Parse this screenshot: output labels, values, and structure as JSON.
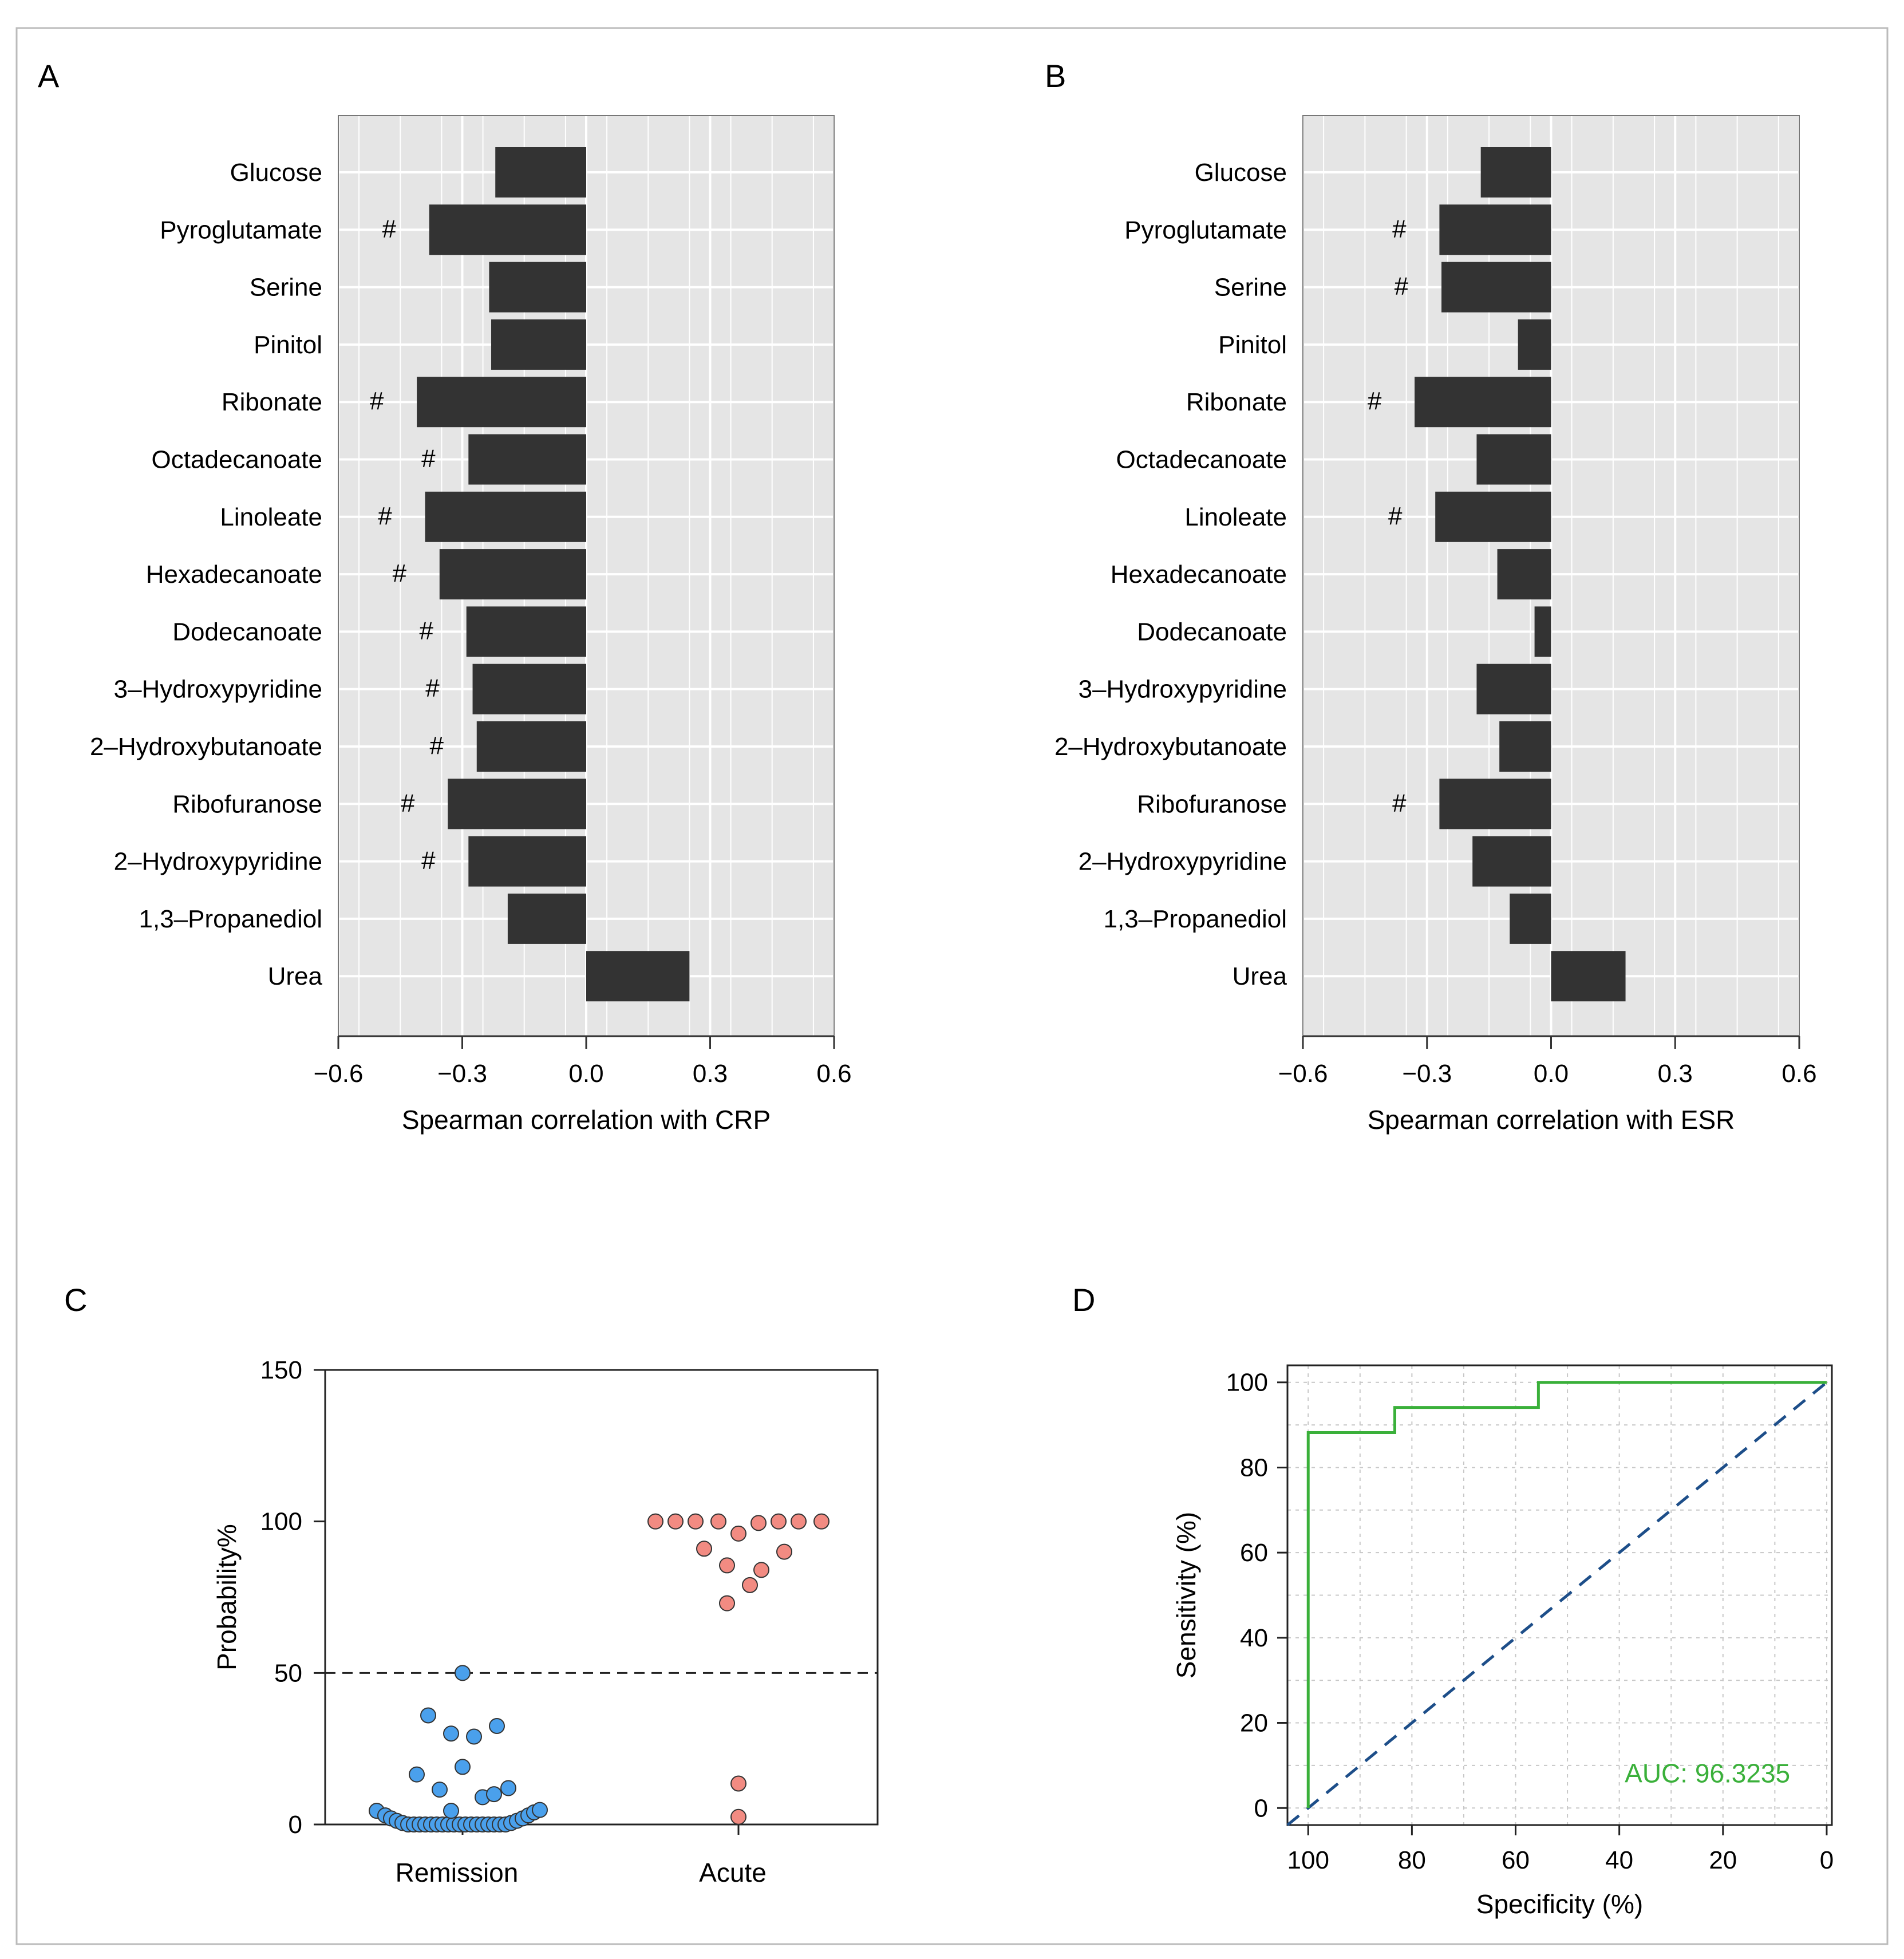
{
  "panel_labels": {
    "a": "A",
    "b": "B",
    "c": "C",
    "d": "D"
  },
  "colors": {
    "bar": "#333333",
    "panel_bg": "#e5e5e5",
    "grid": "#ffffff",
    "remission": "#4aa0ec",
    "acute": "#f28b82",
    "roc": "#3ab03a",
    "diagonal": "#1d4e89"
  },
  "chart_data": [
    {
      "id": "A",
      "type": "bar",
      "orientation": "horizontal",
      "categories": [
        "Glucose",
        "Pyroglutamate",
        "Serine",
        "Pinitol",
        "Ribonate",
        "Octadecanoate",
        "Linoleate",
        "Hexadecanoate",
        "Dodecanoate",
        "3–Hydroxypyridine",
        "2–Hydroxybutanoate",
        "Ribofuranose",
        "2–Hydroxypyridine",
        "1,3–Propanediol",
        "Urea"
      ],
      "values": [
        -0.22,
        -0.38,
        -0.235,
        -0.23,
        -0.41,
        -0.285,
        -0.39,
        -0.355,
        -0.29,
        -0.275,
        -0.265,
        -0.335,
        -0.285,
        -0.19,
        0.25
      ],
      "significant": [
        false,
        true,
        false,
        false,
        true,
        true,
        true,
        true,
        true,
        true,
        true,
        true,
        true,
        false,
        false
      ],
      "marker": "#",
      "xlabel": "Spearman correlation with CRP",
      "xlim": [
        -0.6,
        0.6
      ],
      "xticks": [
        -0.6,
        -0.3,
        0.0,
        0.3,
        0.6
      ],
      "xtick_labels": [
        "−0.6",
        "−0.3",
        "0.0",
        "0.3",
        "0.6"
      ]
    },
    {
      "id": "B",
      "type": "bar",
      "orientation": "horizontal",
      "categories": [
        "Glucose",
        "Pyroglutamate",
        "Serine",
        "Pinitol",
        "Ribonate",
        "Octadecanoate",
        "Linoleate",
        "Hexadecanoate",
        "Dodecanoate",
        "3–Hydroxypyridine",
        "2–Hydroxybutanoate",
        "Ribofuranose",
        "2–Hydroxypyridine",
        "1,3–Propanediol",
        "Urea"
      ],
      "values": [
        -0.17,
        -0.27,
        -0.265,
        -0.08,
        -0.33,
        -0.18,
        -0.28,
        -0.13,
        -0.04,
        -0.18,
        -0.125,
        -0.27,
        -0.19,
        -0.1,
        0.18
      ],
      "significant": [
        false,
        true,
        true,
        false,
        true,
        false,
        true,
        false,
        false,
        false,
        false,
        true,
        false,
        false,
        false
      ],
      "marker": "#",
      "xlabel": "Spearman correlation with ESR",
      "xlim": [
        -0.6,
        0.6
      ],
      "xticks": [
        -0.6,
        -0.3,
        0.0,
        0.3,
        0.6
      ],
      "xtick_labels": [
        "−0.6",
        "−0.3",
        "0.0",
        "0.3",
        "0.6"
      ]
    },
    {
      "id": "C",
      "type": "scatter",
      "categories": [
        "Remission",
        "Acute"
      ],
      "ylabel": "Probability%",
      "ylim": [
        0,
        150
      ],
      "yticks": [
        0,
        50,
        100,
        150
      ],
      "threshold": 50,
      "series": [
        {
          "name": "Remission",
          "points": [
            {
              "dx": -0.3,
              "y": 4.5
            },
            {
              "dx": -0.27,
              "y": 3
            },
            {
              "dx": -0.25,
              "y": 2
            },
            {
              "dx": -0.23,
              "y": 1.2
            },
            {
              "dx": -0.21,
              "y": 0.5
            },
            {
              "dx": -0.19,
              "y": 0
            },
            {
              "dx": -0.17,
              "y": 0
            },
            {
              "dx": -0.15,
              "y": 0
            },
            {
              "dx": -0.13,
              "y": 0
            },
            {
              "dx": -0.11,
              "y": 0
            },
            {
              "dx": -0.09,
              "y": 0
            },
            {
              "dx": -0.07,
              "y": 0
            },
            {
              "dx": -0.05,
              "y": 0
            },
            {
              "dx": -0.03,
              "y": 0
            },
            {
              "dx": -0.01,
              "y": 0
            },
            {
              "dx": 0.01,
              "y": 0
            },
            {
              "dx": 0.03,
              "y": 0
            },
            {
              "dx": 0.05,
              "y": 0
            },
            {
              "dx": 0.07,
              "y": 0
            },
            {
              "dx": 0.09,
              "y": 0
            },
            {
              "dx": 0.11,
              "y": 0
            },
            {
              "dx": 0.13,
              "y": 0
            },
            {
              "dx": 0.15,
              "y": 0
            },
            {
              "dx": 0.17,
              "y": 0.5
            },
            {
              "dx": 0.19,
              "y": 1.2
            },
            {
              "dx": 0.21,
              "y": 2
            },
            {
              "dx": 0.23,
              "y": 3
            },
            {
              "dx": 0.25,
              "y": 4
            },
            {
              "dx": 0.27,
              "y": 4.8
            },
            {
              "dx": -0.04,
              "y": 4.5
            },
            {
              "dx": -0.08,
              "y": 11.5
            },
            {
              "dx": 0.07,
              "y": 9
            },
            {
              "dx": 0.11,
              "y": 10
            },
            {
              "dx": 0.16,
              "y": 12
            },
            {
              "dx": -0.16,
              "y": 16.5
            },
            {
              "dx": 0.0,
              "y": 19
            },
            {
              "dx": -0.04,
              "y": 30
            },
            {
              "dx": 0.04,
              "y": 29
            },
            {
              "dx": 0.12,
              "y": 32.5
            },
            {
              "dx": -0.12,
              "y": 36
            },
            {
              "dx": 0.0,
              "y": 50
            }
          ]
        },
        {
          "name": "Acute",
          "points": [
            {
              "dx": -0.29,
              "y": 100
            },
            {
              "dx": -0.22,
              "y": 100
            },
            {
              "dx": -0.15,
              "y": 100
            },
            {
              "dx": -0.07,
              "y": 100
            },
            {
              "dx": 0.07,
              "y": 99.5
            },
            {
              "dx": 0.14,
              "y": 100
            },
            {
              "dx": 0.21,
              "y": 100
            },
            {
              "dx": 0.29,
              "y": 100
            },
            {
              "dx": 0.0,
              "y": 96
            },
            {
              "dx": -0.12,
              "y": 91
            },
            {
              "dx": 0.16,
              "y": 90
            },
            {
              "dx": -0.04,
              "y": 85.5
            },
            {
              "dx": 0.08,
              "y": 84
            },
            {
              "dx": 0.04,
              "y": 79
            },
            {
              "dx": -0.04,
              "y": 73
            },
            {
              "dx": 0.0,
              "y": 13.5
            },
            {
              "dx": 0.0,
              "y": 2.5
            }
          ]
        }
      ]
    },
    {
      "id": "D",
      "type": "line",
      "xlabel": "Specificity (%)",
      "ylabel": "Sensitivity (%)",
      "xlim": [
        104,
        -1
      ],
      "ylim": [
        -4,
        104
      ],
      "xticks": [
        100,
        80,
        60,
        40,
        20,
        0
      ],
      "yticks": [
        0,
        20,
        40,
        60,
        80,
        100
      ],
      "series": [
        {
          "name": "ROC",
          "x": [
            100,
            100,
            83.3,
            83.3,
            55.6,
            55.6,
            0
          ],
          "y": [
            0,
            88.2,
            88.2,
            94.1,
            94.1,
            100,
            100
          ]
        },
        {
          "name": "Reference",
          "x": [
            104,
            -1
          ],
          "y": [
            -4,
            101
          ]
        }
      ],
      "auc_label": "AUC: 96.3235"
    }
  ]
}
